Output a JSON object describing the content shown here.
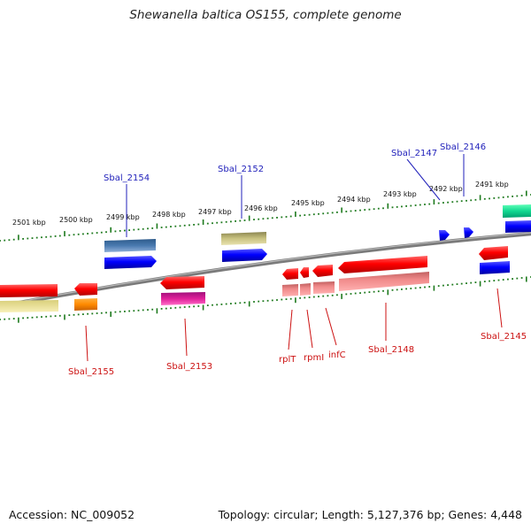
{
  "title": "Shewanella baltica OS155, complete genome",
  "footer": {
    "accession": "Accession: NC_009052",
    "stats": "Topology: circular; Length: 5,127,376 bp; Genes: 4,448"
  },
  "colors": {
    "upper_label": "#2222bb",
    "lower_label": "#cc1111",
    "tick": "#1e7a1e",
    "backbone": "#8a8a8a"
  },
  "kbp_labels": [
    "2501 kbp",
    "2500 kbp",
    "2499 kbp",
    "2498 kbp",
    "2497 kbp",
    "2496 kbp",
    "2495 kbp",
    "2494 kbp",
    "2493 kbp",
    "2492 kbp",
    "2491 kbp"
  ],
  "upper_gene_labels": [
    "Sbal_2154",
    "Sbal_2152",
    "Sbal_2147",
    "Sbal_2146"
  ],
  "lower_gene_labels": [
    "Sbal_2155",
    "Sbal_2153",
    "rplT",
    "rpmI",
    "infC",
    "Sbal_2148",
    "Sbal_2145"
  ]
}
